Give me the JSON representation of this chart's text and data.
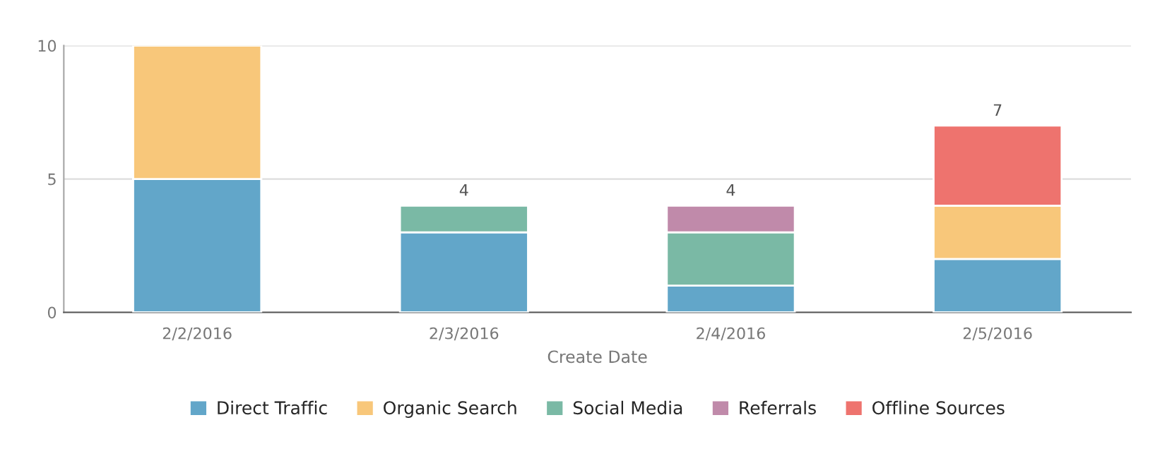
{
  "chart_data": {
    "type": "bar",
    "stacked": true,
    "xlabel": "Create Date",
    "categories": [
      "2/2/2016",
      "2/3/2016",
      "2/4/2016",
      "2/5/2016"
    ],
    "series": [
      {
        "name": "Direct Traffic",
        "color": "#62a6c9",
        "values": [
          5,
          3,
          1,
          2
        ]
      },
      {
        "name": "Organic Search",
        "color": "#f8c77a",
        "values": [
          5,
          null,
          null,
          2
        ]
      },
      {
        "name": "Social Media",
        "color": "#7ab9a5",
        "values": [
          null,
          1,
          2,
          null
        ]
      },
      {
        "name": "Referrals",
        "color": "#c08aaa",
        "values": [
          null,
          null,
          1,
          null
        ]
      },
      {
        "name": "Offline Sources",
        "color": "#ee736e",
        "values": [
          null,
          null,
          null,
          3
        ]
      }
    ],
    "totals": [
      null,
      "4",
      "4",
      "7"
    ],
    "ylim": [
      0,
      10
    ],
    "yticks": [
      0,
      5,
      10
    ],
    "grid": "y",
    "legend": "bottom"
  }
}
